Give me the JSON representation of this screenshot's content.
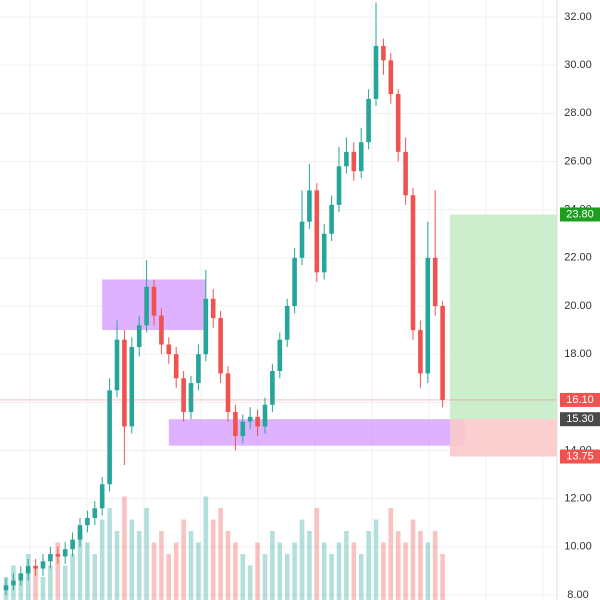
{
  "chart_data": {
    "type": "candlestick",
    "ylim": [
      8,
      32.6
    ],
    "yticks": [
      {
        "value": 8,
        "label": "8.00"
      },
      {
        "value": 10,
        "label": "10.00"
      },
      {
        "value": 12,
        "label": "12.00"
      },
      {
        "value": 14,
        "label": "14.00"
      },
      {
        "value": 16,
        "label": "16.00"
      },
      {
        "value": 18,
        "label": "18.00"
      },
      {
        "value": 20,
        "label": "20.00"
      },
      {
        "value": 22,
        "label": "22.00"
      },
      {
        "value": 24,
        "label": "24.00"
      },
      {
        "value": 26,
        "label": "26.00"
      },
      {
        "value": 28,
        "label": "28.00"
      },
      {
        "value": 30,
        "label": "30.00"
      },
      {
        "value": 32,
        "label": "32.00"
      }
    ],
    "grid": true,
    "up_color": "#26a69a",
    "down_color": "#ef5350",
    "ohlc": {
      "open": [
        8.2,
        8.4,
        8.6,
        8.9,
        9.2,
        9.1,
        9.4,
        9.7,
        9.6,
        9.9,
        10.3,
        10.9,
        11.2,
        11.6,
        12.6,
        16.5,
        18.6,
        15.0,
        18.3,
        19.2,
        20.8,
        19.6,
        18.4,
        18.0,
        17.0,
        15.6,
        16.8,
        18.0,
        20.3,
        19.5,
        17.2,
        15.6,
        14.6,
        15.2,
        15.4,
        15.0,
        15.9,
        17.3,
        18.6,
        20.0,
        22.0,
        23.5,
        24.8,
        21.4,
        23.0,
        24.2,
        25.8,
        26.4,
        25.6,
        26.8,
        28.6,
        30.8,
        30.2,
        28.8,
        26.4,
        24.6,
        19.0,
        17.2,
        22.0,
        20.0
      ],
      "high": [
        8.7,
        8.9,
        9.2,
        9.5,
        9.5,
        9.7,
        10.0,
        10.0,
        10.2,
        10.6,
        11.2,
        11.5,
        11.9,
        12.9,
        17.0,
        19.4,
        19.0,
        18.7,
        19.6,
        21.9,
        21.1,
        19.9,
        18.7,
        18.3,
        17.3,
        17.1,
        18.4,
        21.5,
        20.7,
        19.8,
        17.5,
        15.9,
        15.5,
        15.8,
        15.7,
        16.2,
        17.6,
        18.9,
        20.3,
        22.4,
        24.8,
        25.9,
        25.1,
        23.4,
        24.6,
        26.6,
        27.0,
        26.8,
        27.4,
        29.0,
        32.6,
        31.1,
        30.5,
        29.0,
        27.0,
        24.9,
        19.4,
        23.5,
        24.8,
        20.2
      ],
      "low": [
        8.0,
        8.2,
        8.4,
        8.6,
        8.8,
        8.8,
        9.1,
        9.3,
        9.3,
        9.6,
        10.0,
        10.6,
        10.9,
        11.3,
        12.3,
        16.2,
        13.4,
        14.7,
        17.9,
        18.9,
        19.2,
        18.0,
        17.6,
        16.6,
        15.2,
        15.3,
        16.5,
        17.7,
        19.1,
        16.8,
        15.2,
        14.0,
        14.3,
        14.9,
        14.6,
        14.7,
        15.6,
        17.0,
        18.3,
        19.7,
        21.7,
        23.2,
        21.0,
        21.1,
        22.7,
        23.9,
        25.5,
        25.2,
        25.3,
        26.5,
        28.3,
        29.6,
        28.4,
        26.0,
        24.2,
        18.6,
        16.6,
        16.8,
        19.6,
        15.8
      ],
      "close": [
        8.4,
        8.6,
        8.9,
        9.2,
        9.1,
        9.4,
        9.7,
        9.6,
        9.9,
        10.3,
        10.9,
        11.2,
        11.6,
        12.6,
        16.5,
        18.6,
        15.0,
        18.3,
        19.2,
        20.8,
        19.6,
        18.4,
        18.0,
        17.0,
        15.6,
        16.8,
        18.0,
        20.3,
        19.5,
        17.2,
        15.6,
        14.6,
        15.2,
        15.4,
        15.0,
        15.9,
        17.3,
        18.6,
        20.0,
        22.0,
        23.5,
        24.8,
        21.4,
        23.0,
        24.2,
        25.8,
        26.4,
        25.6,
        26.8,
        28.6,
        30.8,
        30.2,
        28.8,
        26.4,
        24.6,
        19.0,
        17.2,
        22.0,
        20.0,
        16.1
      ]
    },
    "volume": [
      2,
      3,
      2,
      4,
      3,
      2,
      3,
      5,
      3,
      4,
      6,
      5,
      4,
      7,
      8,
      6,
      9,
      7,
      6,
      8,
      5,
      6,
      4,
      5,
      7,
      6,
      5,
      9,
      7,
      8,
      6,
      5,
      4,
      3,
      5,
      4,
      6,
      5,
      4,
      5,
      7,
      6,
      8,
      5,
      4,
      5,
      6,
      5,
      4,
      6,
      7,
      5,
      8,
      6,
      5,
      7,
      6,
      5,
      6,
      4
    ],
    "volume_ylim": [
      0,
      10
    ],
    "zones": [
      {
        "start_index": 13,
        "end_index": 27,
        "low": 19.0,
        "high": 21.1,
        "color": "#cc88ff"
      },
      {
        "start_index": 22,
        "end_index": 62,
        "low": 14.2,
        "high": 15.3,
        "color": "#cc88ff"
      }
    ],
    "position": {
      "start_index": 60,
      "entry": 15.3,
      "target": 23.8,
      "stop": 13.75,
      "profit_color": "#c8ecc8",
      "loss_color": "#fbcaca"
    },
    "price_labels": [
      {
        "value": 23.8,
        "label": "23.80",
        "color": "#1e9e1e"
      },
      {
        "value": 16.1,
        "label": "16.10",
        "color": "#ef5350"
      },
      {
        "value": 15.3,
        "label": "15.30",
        "color": "#4a4a4a"
      },
      {
        "value": 13.75,
        "label": "13.75",
        "color": "#ef5350"
      }
    ]
  }
}
